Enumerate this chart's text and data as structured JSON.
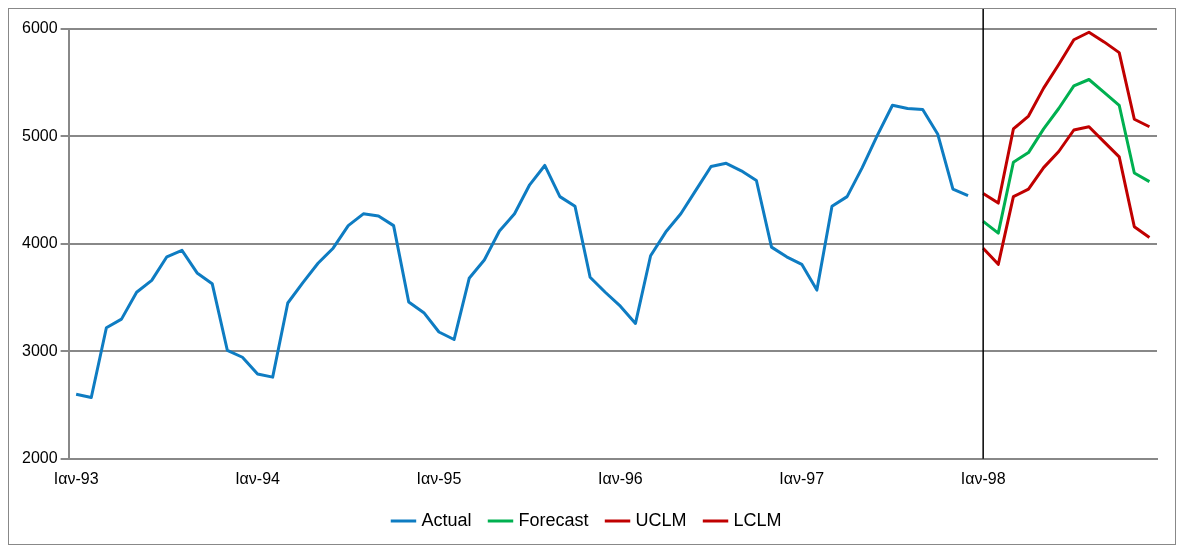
{
  "chart_data": {
    "type": "line",
    "categories": [
      "Iαν-93",
      null,
      null,
      null,
      null,
      null,
      null,
      null,
      null,
      null,
      null,
      null,
      "Iαν-94",
      null,
      null,
      null,
      null,
      null,
      null,
      null,
      null,
      null,
      null,
      null,
      "Iαν-95",
      null,
      null,
      null,
      null,
      null,
      null,
      null,
      null,
      null,
      null,
      null,
      "Iαν-96",
      null,
      null,
      null,
      null,
      null,
      null,
      null,
      null,
      null,
      null,
      null,
      "Iαν-97",
      null,
      null,
      null,
      null,
      null,
      null,
      null,
      null,
      null,
      null,
      null,
      "Iαν-98",
      null,
      null,
      null,
      null,
      null,
      null,
      null,
      null,
      null,
      null,
      null
    ],
    "series": [
      {
        "name": "Actual",
        "color": "#0e7cc2",
        "values": [
          2600,
          2570,
          3220,
          3300,
          3550,
          3660,
          3880,
          3940,
          3730,
          3630,
          3010,
          2945,
          2790,
          2760,
          3450,
          3640,
          3820,
          3960,
          4170,
          4280,
          4260,
          4170,
          3460,
          3360,
          3180,
          3110,
          3680,
          3850,
          4120,
          4280,
          4550,
          4730,
          4440,
          4350,
          3690,
          3550,
          3420,
          3260,
          3890,
          4110,
          4280,
          4500,
          4720,
          4750,
          4680,
          4590,
          3970,
          3880,
          3810,
          3570,
          4350,
          4440,
          4710,
          5010,
          5290,
          5260,
          5250,
          5020,
          4510,
          4450,
          null,
          null,
          null,
          null,
          null,
          null,
          null,
          null,
          null,
          null,
          null,
          null
        ]
      },
      {
        "name": "Forecast",
        "color": "#00b050",
        "values": [
          null,
          null,
          null,
          null,
          null,
          null,
          null,
          null,
          null,
          null,
          null,
          null,
          null,
          null,
          null,
          null,
          null,
          null,
          null,
          null,
          null,
          null,
          null,
          null,
          null,
          null,
          null,
          null,
          null,
          null,
          null,
          null,
          null,
          null,
          null,
          null,
          null,
          null,
          null,
          null,
          null,
          null,
          null,
          null,
          null,
          null,
          null,
          null,
          null,
          null,
          null,
          null,
          null,
          null,
          null,
          null,
          null,
          null,
          null,
          null,
          4210,
          4100,
          4760,
          4850,
          5070,
          5260,
          5470,
          5530,
          5410,
          5290,
          4660,
          4580
        ]
      },
      {
        "name": "UCLM",
        "color": "#c00000",
        "values": [
          null,
          null,
          null,
          null,
          null,
          null,
          null,
          null,
          null,
          null,
          null,
          null,
          null,
          null,
          null,
          null,
          null,
          null,
          null,
          null,
          null,
          null,
          null,
          null,
          null,
          null,
          null,
          null,
          null,
          null,
          null,
          null,
          null,
          null,
          null,
          null,
          null,
          null,
          null,
          null,
          null,
          null,
          null,
          null,
          null,
          null,
          null,
          null,
          null,
          null,
          null,
          null,
          null,
          null,
          null,
          null,
          null,
          null,
          null,
          null,
          4470,
          4380,
          5070,
          5190,
          5450,
          5670,
          5900,
          5970,
          5880,
          5780,
          5160,
          5090
        ]
      },
      {
        "name": "LCLM",
        "color": "#c00000",
        "values": [
          null,
          null,
          null,
          null,
          null,
          null,
          null,
          null,
          null,
          null,
          null,
          null,
          null,
          null,
          null,
          null,
          null,
          null,
          null,
          null,
          null,
          null,
          null,
          null,
          null,
          null,
          null,
          null,
          null,
          null,
          null,
          null,
          null,
          null,
          null,
          null,
          null,
          null,
          null,
          null,
          null,
          null,
          null,
          null,
          null,
          null,
          null,
          null,
          null,
          null,
          null,
          null,
          null,
          null,
          null,
          null,
          null,
          null,
          null,
          null,
          3960,
          3810,
          4440,
          4510,
          4710,
          4860,
          5060,
          5090,
          4950,
          4810,
          4160,
          4060
        ]
      }
    ],
    "ylim": [
      2000,
      6000
    ],
    "yticks": [
      2000,
      3000,
      4000,
      5000,
      6000
    ],
    "ref_lines": [
      {
        "axis": "x",
        "value": "Iαν-98",
        "color": "#000000"
      }
    ],
    "grid": "y",
    "legend": "bottom",
    "marker": "none",
    "line_style": "solid"
  }
}
